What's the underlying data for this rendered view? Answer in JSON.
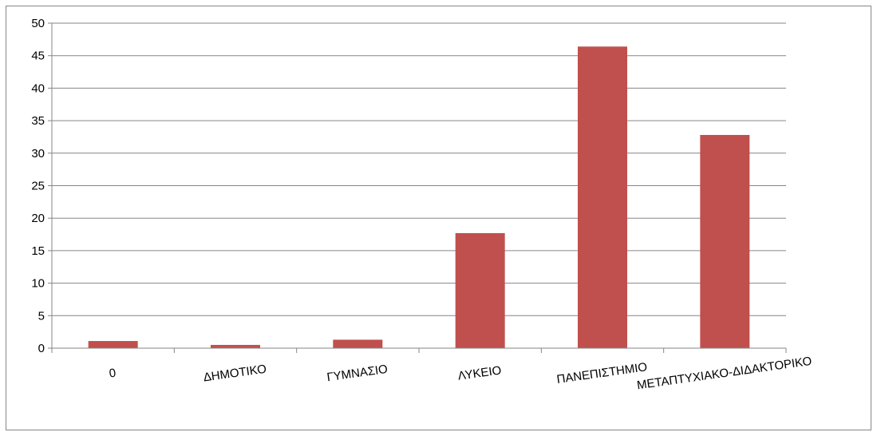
{
  "chart_data": {
    "type": "bar",
    "title": "",
    "xlabel": "",
    "ylabel": "",
    "categories": [
      "0",
      "ΔΗΜΟΤΙΚΟ",
      "ΓΥΜΝΑΣΙΟ",
      "ΛΥΚΕΙΟ",
      "ΠΑΝΕΠΙΣΤΗΜΙΟ",
      "ΜΕΤΑΠΤΥΧΙΑΚΟ-ΔΙΔΑΚΤΟΡΙΚΟ"
    ],
    "values": [
      1.1,
      0.5,
      1.3,
      17.7,
      46.4,
      32.8
    ],
    "ylim": [
      0,
      50
    ],
    "yticks": [
      0,
      5,
      10,
      15,
      20,
      25,
      30,
      35,
      40,
      45,
      50
    ],
    "grid": true,
    "legend": "none",
    "bar_color": "#C0504D",
    "grid_color": "#868686"
  }
}
